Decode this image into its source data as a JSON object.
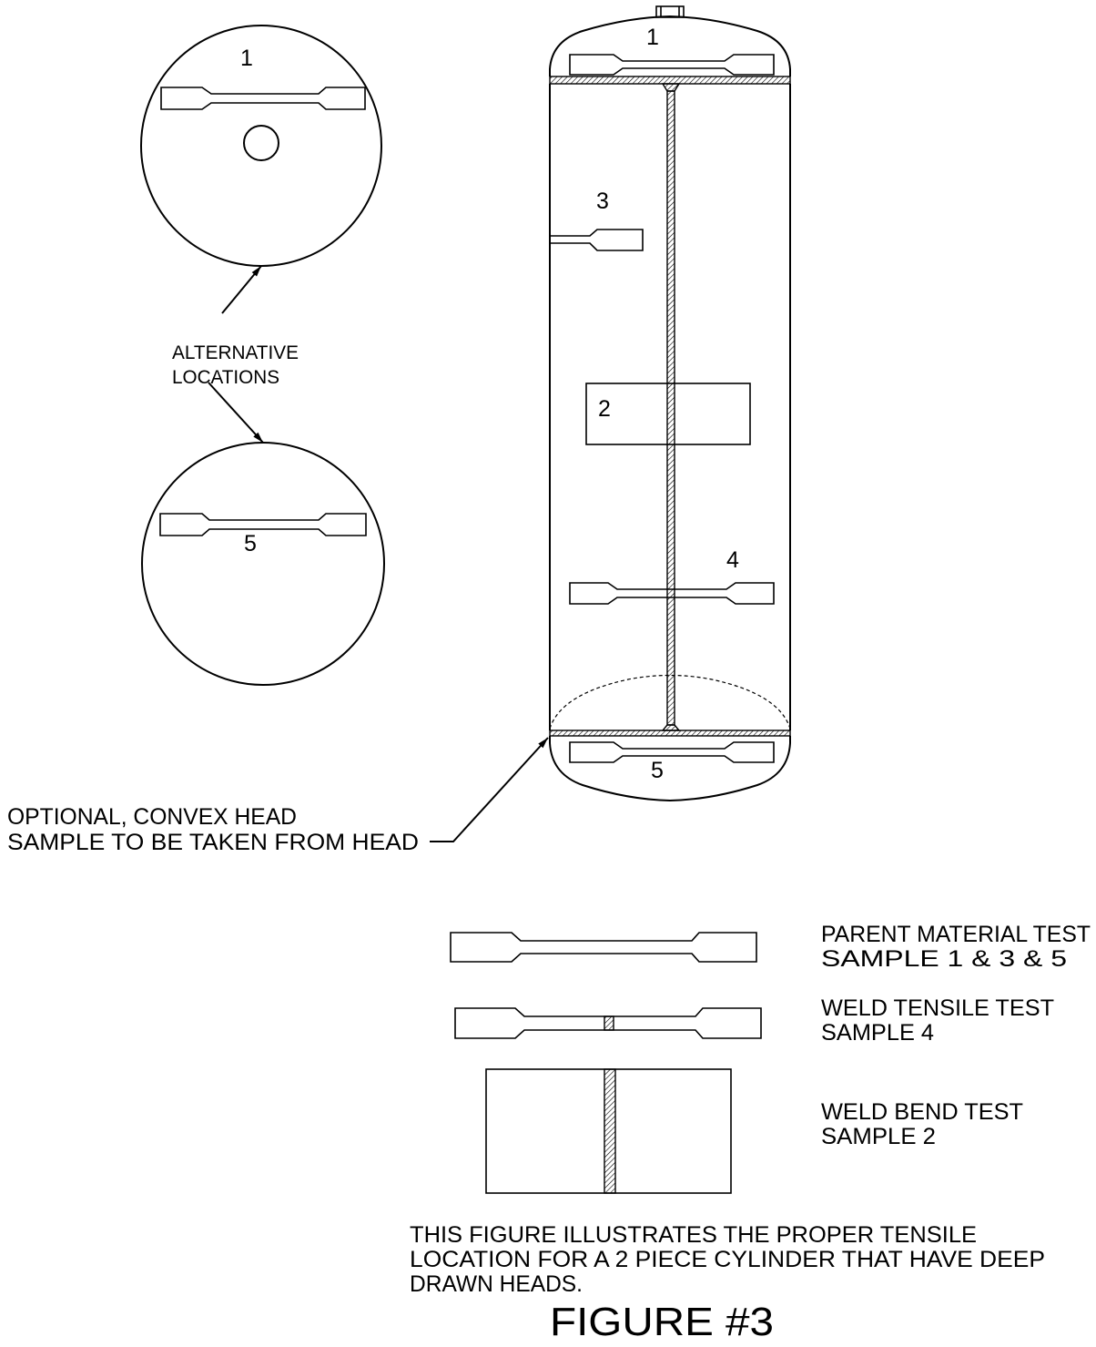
{
  "drawing": {
    "line_color": "#000000",
    "background": "#ffffff"
  },
  "head_views": {
    "top_label": "1",
    "alternative_line1": "ALTERNATIVE",
    "alternative_line2": "LOCATIONS",
    "bottom_label": "5"
  },
  "cylinder": {
    "top_head_label": "1",
    "sample_3_label": "3",
    "sample_2_label": "2",
    "sample_4_label": "4",
    "bottom_head_label": "5"
  },
  "optional_note": {
    "line1": "OPTIONAL, CONVEX HEAD",
    "line2": "SAMPLE TO BE TAKEN FROM HEAD"
  },
  "legend": [
    {
      "line1": "PARENT MATERIAL TEST",
      "line2": "SAMPLE 1 & 3 & 5"
    },
    {
      "line1": "WELD TENSILE TEST",
      "line2": "SAMPLE 4"
    },
    {
      "line1": "WELD BEND TEST",
      "line2": "SAMPLE 2"
    }
  ],
  "caption": [
    "THIS FIGURE ILLUSTRATES THE PROPER TENSILE",
    "LOCATION FOR A 2 PIECE CYLINDER THAT HAVE DEEP",
    "DRAWN HEADS."
  ],
  "figure_title": "FIGURE #3"
}
